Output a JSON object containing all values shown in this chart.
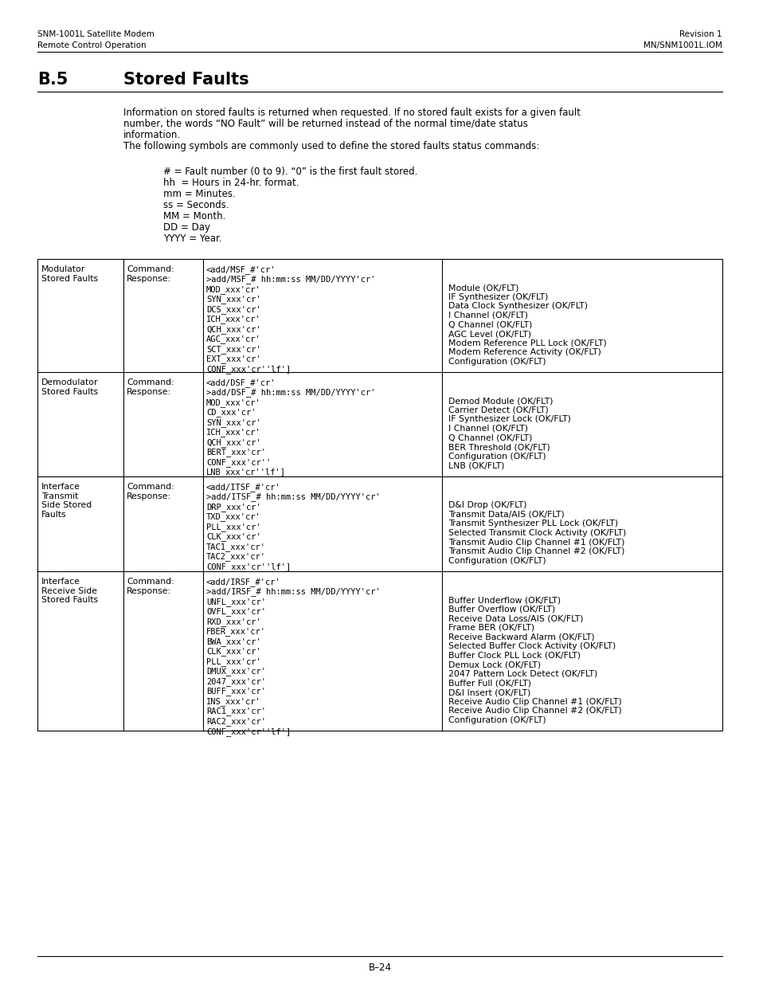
{
  "header_left_line1": "SNM-1001L Satellite Modem",
  "header_left_line2": "Remote Control Operation",
  "header_right_line1": "Revision 1",
  "header_right_line2": "MN/SNM1001L.IOM",
  "section": "B.5",
  "section_title": "Stored Faults",
  "intro_lines": [
    "Information on stored faults is returned when requested. If no stored fault exists for a given fault",
    "number, the words “NO Fault” will be returned instead of the normal time/date status",
    "information.",
    "The following symbols are commonly used to define the stored faults status commands:"
  ],
  "symbols": [
    "# = Fault number (0 to 9). “0” is the first fault stored.",
    "hh  = Hours in 24-hr. format.",
    "mm = Minutes.",
    "ss = Seconds.",
    "MM = Month.",
    "DD = Day",
    "YYYY = Year."
  ],
  "table_rows": [
    {
      "col1": "Modulator\nStored Faults",
      "col2": "Command:\nResponse:",
      "col3": "<add/MSF_#'cr'\n>add/MSF_# hh:mm:ss MM/DD/YYYY'cr'\nMOD_xxx'cr'\nSYN_xxx'cr'\nDCS_xxx'cr'\nICH_xxx'cr'\nQCH_xxx'cr'\nAGC_xxx'cr'\nSCT_xxx'cr'\nEXT_xxx'cr'\nCONF_xxx'cr''lf']",
      "col4": "\n\nModule (OK/FLT)\nIF Synthesizer (OK/FLT)\nData Clock Synthesizer (OK/FLT)\nI Channel (OK/FLT)\nQ Channel (OK/FLT)\nAGC Level (OK/FLT)\nModem Reference PLL Lock (OK/FLT)\nModem Reference Activity (OK/FLT)\nConfiguration (OK/FLT)"
    },
    {
      "col1": "Demodulator\nStored Faults",
      "col2": "Command:\nResponse:",
      "col3": "<add/DSF_#'cr'\n>add/DSF_# hh:mm:ss MM/DD/YYYY'cr'\nMOD_xxx'cr'\nCD_xxx'cr'\nSYN_xxx'cr'\nICH_xxx'cr'\nQCH_xxx'cr'\nBERT_xxx'cr'\nCONF_xxx'cr''\nLNB_xxx'cr''lf']",
      "col4": "\n\nDemod Module (OK/FLT)\nCarrier Detect (OK/FLT)\nIF Synthesizer Lock (OK/FLT)\nI Channel (OK/FLT)\nQ Channel (OK/FLT)\nBER Threshold (OK/FLT)\nConfiguration (OK/FLT)\nLNB (OK/FLT)"
    },
    {
      "col1": "Interface\nTransmit\nSide Stored\nFaults",
      "col2": "Command:\nResponse:",
      "col3": "<add/ITSF_#'cr'\n>add/ITSF_# hh:mm:ss MM/DD/YYYY'cr'\nDRP_xxx'cr'\nTXD_xxx'cr'\nPLL_xxx'cr'\nCLK_xxx'cr'\nTAC1_xxx'cr'\nTAC2_xxx'cr'\nCONF_xxx'cr''lf']",
      "col4": "\n\nD&I Drop (OK/FLT)\nTransmit Data/AIS (OK/FLT)\nTransmit Synthesizer PLL Lock (OK/FLT)\nSelected Transmit Clock Activity (OK/FLT)\nTransmit Audio Clip Channel #1 (OK/FLT)\nTransmit Audio Clip Channel #2 (OK/FLT)\nConfiguration (OK/FLT)"
    },
    {
      "col1": "Interface\nReceive Side\nStored Faults",
      "col2": "Command:\nResponse:",
      "col3": "<add/IRSF_#'cr'\n>add/IRSF_# hh:mm:ss MM/DD/YYYY'cr'\nUNFL_xxx'cr'\nOVFL_xxx'cr'\nRXD_xxx'cr'\nFBER_xxx'cr'\nBWA_xxx'cr'\nCLK_xxx'cr'\nPLL_xxx'cr'\nDMUX_xxx'cr'\n2047_xxx'cr'\nBUFF_xxx'cr'\nINS_xxx'cr'\nRAC1_xxx'cr'\nRAC2_xxx'cr'\nCONF_xxx'cr''lf']",
      "col4": "\n\nBuffer Underflow (OK/FLT)\nBuffer Overflow (OK/FLT)\nReceive Data Loss/AIS (OK/FLT)\nFrame BER (OK/FLT)\nReceive Backward Alarm (OK/FLT)\nSelected Buffer Clock Activity (OK/FLT)\nBuffer Clock PLL Lock (OK/FLT)\nDemux Lock (OK/FLT)\n2047 Pattern Lock Detect (OK/FLT)\nBuffer Full (OK/FLT)\nD&I Insert (OK/FLT)\nReceive Audio Clip Channel #1 (OK/FLT)\nReceive Audio Clip Channel #2 (OK/FLT)\nConfiguration (OK/FLT)"
    }
  ],
  "footer_text": "B–24",
  "bg_color": "#ffffff",
  "text_color": "#000000"
}
